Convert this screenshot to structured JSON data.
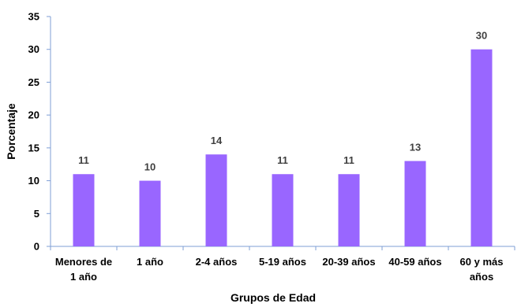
{
  "chart_data": {
    "type": "bar",
    "categories": [
      [
        "Menores de",
        "1 año"
      ],
      [
        "1 año"
      ],
      [
        "2-4 años"
      ],
      [
        "5-19 años"
      ],
      [
        "20-39 años"
      ],
      [
        "40-59 años"
      ],
      [
        "60 y más",
        "años"
      ]
    ],
    "values": [
      11,
      10,
      14,
      11,
      11,
      13,
      30
    ],
    "data_labels": [
      "11",
      "10",
      "14",
      "11",
      "11",
      "13",
      "30"
    ],
    "xlabel": "Grupos de Edad",
    "ylabel": "Porcentaje",
    "ylim": [
      0,
      35
    ],
    "yticks": [
      "0",
      "5",
      "10",
      "15",
      "20",
      "25",
      "30",
      "35"
    ],
    "bar_color": "#9966ff",
    "axis_color": "#7f9fd6",
    "grid": false
  }
}
